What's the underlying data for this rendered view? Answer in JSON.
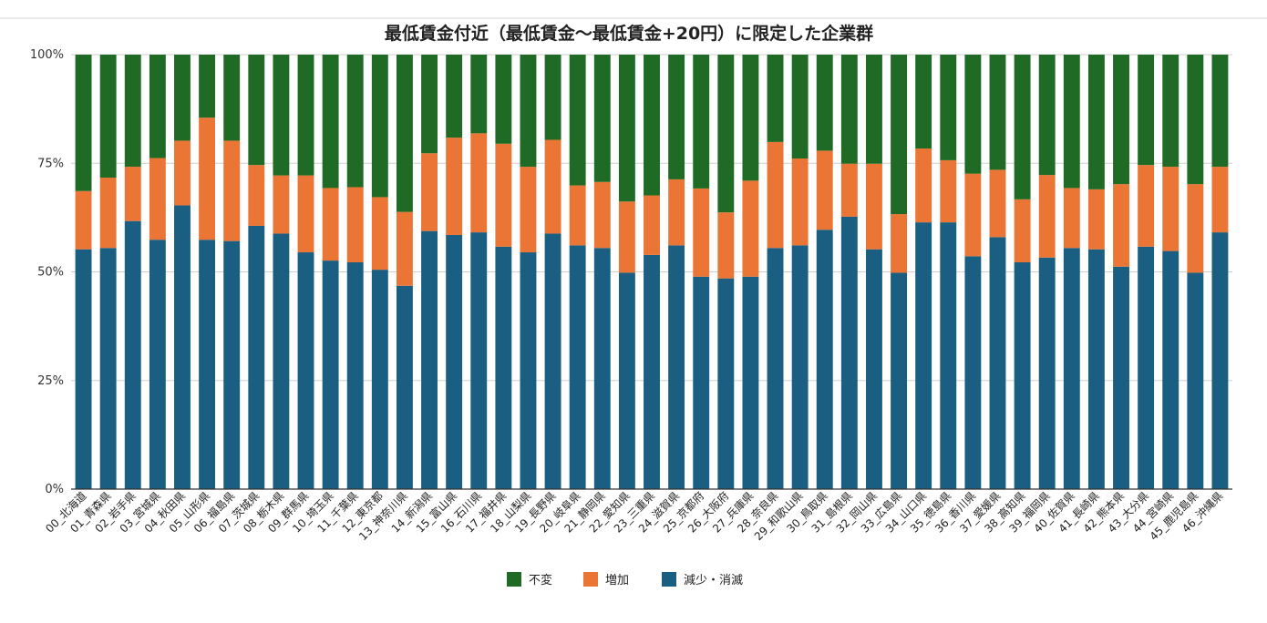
{
  "chart_data": {
    "type": "bar",
    "stacked": true,
    "title": "最低賃金付近（最低賃金～最低賃金+20円）に限定した企業群",
    "xlabel": "",
    "ylabel": "",
    "ylim": [
      0,
      100
    ],
    "yticks": [
      "0%",
      "25%",
      "50%",
      "75%",
      "100%"
    ],
    "grid": true,
    "legend_position": "bottom",
    "categories": [
      "00_北海道",
      "01_青森県",
      "02_岩手県",
      "03_宮城県",
      "04_秋田県",
      "05_山形県",
      "06_福島県",
      "07_茨城県",
      "08_栃木県",
      "09_群馬県",
      "10_埼玉県",
      "11_千葉県",
      "12_東京都",
      "13_神奈川県",
      "14_新潟県",
      "15_富山県",
      "16_石川県",
      "17_福井県",
      "18_山梨県",
      "19_長野県",
      "20_岐阜県",
      "21_静岡県",
      "22_愛知県",
      "23_三重県",
      "24_滋賀県",
      "25_京都府",
      "26_大阪府",
      "27_兵庫県",
      "28_奈良県",
      "29_和歌山県",
      "30_鳥取県",
      "31_島根県",
      "32_岡山県",
      "33_広島県",
      "34_山口県",
      "35_徳島県",
      "36_香川県",
      "37_愛媛県",
      "38_高知県",
      "39_福岡県",
      "40_佐賀県",
      "41_長崎県",
      "42_熊本県",
      "43_大分県",
      "44_宮崎県",
      "45_鹿児島県",
      "46_沖縄県"
    ],
    "series": [
      {
        "name": "減少・消滅",
        "color": "#1a5f82",
        "values": [
          55.2,
          55.5,
          61.7,
          57.4,
          65.3,
          57.4,
          57.1,
          60.6,
          58.8,
          54.5,
          52.6,
          52.2,
          50.5,
          46.8,
          59.4,
          58.5,
          59.1,
          55.8,
          54.5,
          58.8,
          56.1,
          55.5,
          49.8,
          53.9,
          56.1,
          48.9,
          48.5,
          48.9,
          55.5,
          56.1,
          59.7,
          62.7,
          55.2,
          49.8,
          61.4,
          61.4,
          53.6,
          58.0,
          52.2,
          53.3,
          55.5,
          55.2,
          51.2,
          55.8,
          54.8,
          49.8,
          59.1
        ]
      },
      {
        "name": "増加",
        "color": "#ea7535",
        "values": [
          13.4,
          16.2,
          12.5,
          18.8,
          14.9,
          28.1,
          23.1,
          14.0,
          13.4,
          17.7,
          16.7,
          17.3,
          16.7,
          17.0,
          17.9,
          22.4,
          22.8,
          23.7,
          19.7,
          21.6,
          13.8,
          15.2,
          16.4,
          13.7,
          15.2,
          20.3,
          15.2,
          22.1,
          24.4,
          20.0,
          18.2,
          12.2,
          19.7,
          13.5,
          17.0,
          14.3,
          19.0,
          15.5,
          14.5,
          19.0,
          13.8,
          13.8,
          19.0,
          18.8,
          19.4,
          20.4,
          15.1
        ]
      },
      {
        "name": "不変",
        "color": "#1f6b25",
        "values": [
          31.4,
          28.3,
          25.8,
          23.8,
          19.8,
          14.5,
          19.8,
          25.4,
          27.8,
          27.8,
          30.7,
          30.5,
          32.8,
          36.2,
          22.7,
          19.1,
          18.1,
          20.5,
          25.8,
          19.6,
          30.1,
          29.3,
          33.8,
          32.4,
          28.7,
          30.8,
          36.3,
          29.0,
          20.1,
          23.9,
          22.1,
          25.1,
          25.1,
          36.7,
          21.6,
          24.3,
          27.4,
          26.5,
          33.3,
          27.7,
          30.7,
          31.0,
          29.8,
          25.4,
          25.8,
          29.8,
          25.8
        ]
      }
    ]
  }
}
